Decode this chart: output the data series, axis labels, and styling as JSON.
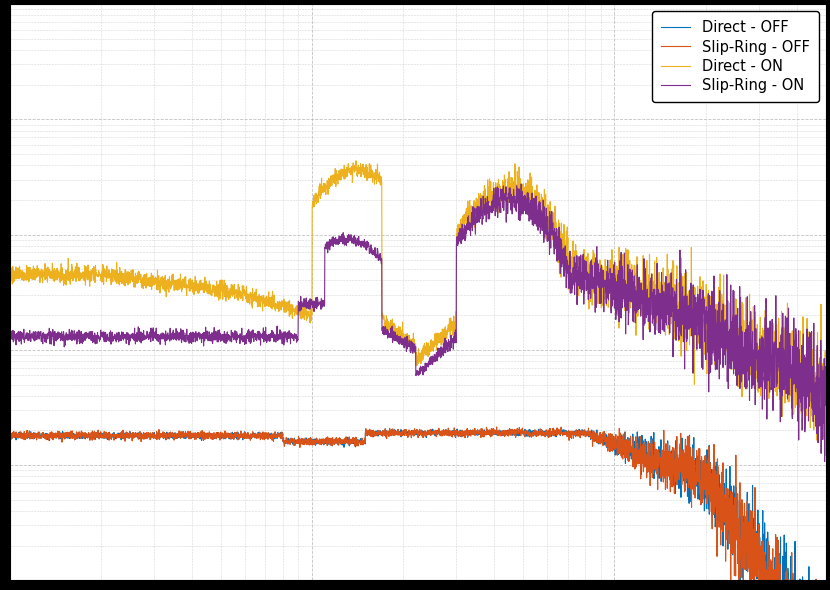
{
  "colors": {
    "direct_off": "#0072BD",
    "slip_ring_off": "#D95319",
    "direct_on": "#EDB120",
    "slip_ring_on": "#7E2F8E"
  },
  "legend": [
    "Direct - OFF",
    "Slip-Ring - OFF",
    "Direct - ON",
    "Slip-Ring - ON"
  ],
  "xlim": [
    1,
    500
  ],
  "ylim": [
    1e-08,
    0.001
  ],
  "background_color": "#FFFFFF",
  "fig_facecolor": "#000000",
  "grid_color": "#BBBBBB",
  "grid_style": "--",
  "tick_labelsize": 9,
  "legend_fontsize": 10.5,
  "linewidth": 0.8
}
